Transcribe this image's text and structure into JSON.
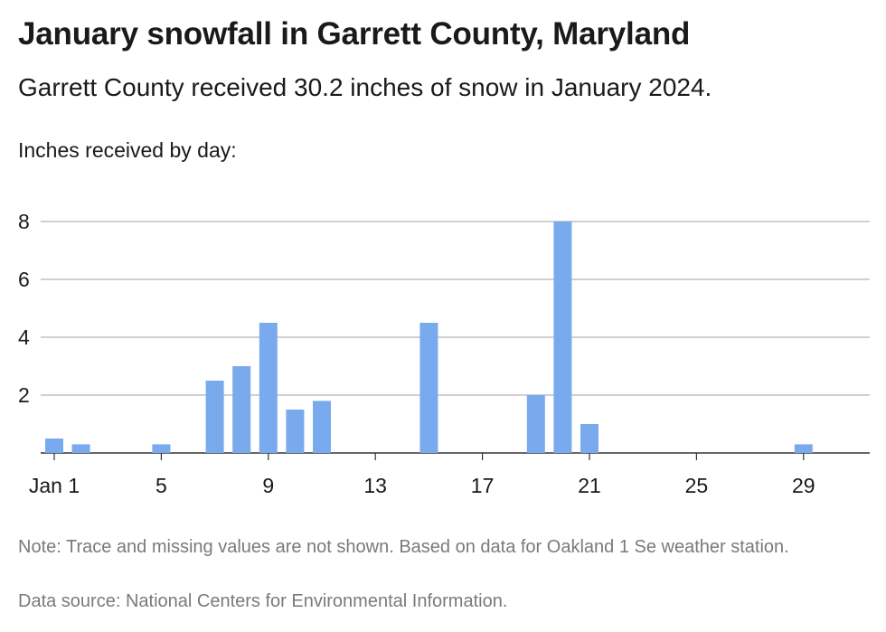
{
  "title": "January snowfall in Garrett County, Maryland",
  "subtitle": "Garrett County received 30.2 inches of snow in January 2024.",
  "note": "Note: Trace and missing values are not shown. Based on data for Oakland 1 Se weather station.",
  "source": "Data source: National Centers for Environmental Information.",
  "chart_data": {
    "type": "bar",
    "ylabel": "Inches received by day:",
    "xlabel": "",
    "ylim": [
      0,
      8
    ],
    "yticks": [
      2,
      4,
      6,
      8
    ],
    "xticks": [
      {
        "day": 1,
        "label": "Jan 1"
      },
      {
        "day": 5,
        "label": "5"
      },
      {
        "day": 9,
        "label": "9"
      },
      {
        "day": 13,
        "label": "13"
      },
      {
        "day": 17,
        "label": "17"
      },
      {
        "day": 21,
        "label": "21"
      },
      {
        "day": 25,
        "label": "25"
      },
      {
        "day": 29,
        "label": "29"
      }
    ],
    "days": [
      1,
      2,
      3,
      4,
      5,
      6,
      7,
      8,
      9,
      10,
      11,
      12,
      13,
      14,
      15,
      16,
      17,
      18,
      19,
      20,
      21,
      22,
      23,
      24,
      25,
      26,
      27,
      28,
      29,
      30,
      31
    ],
    "values": [
      0.5,
      0.3,
      0,
      0,
      0.3,
      0,
      2.5,
      3.0,
      4.5,
      1.5,
      1.8,
      0,
      0,
      0,
      4.5,
      0,
      0,
      0,
      2.0,
      8.0,
      1.0,
      0,
      0,
      0,
      0,
      0,
      0,
      0,
      0.3,
      0,
      0
    ],
    "bar_color": "#7aaaee",
    "grid": true
  }
}
